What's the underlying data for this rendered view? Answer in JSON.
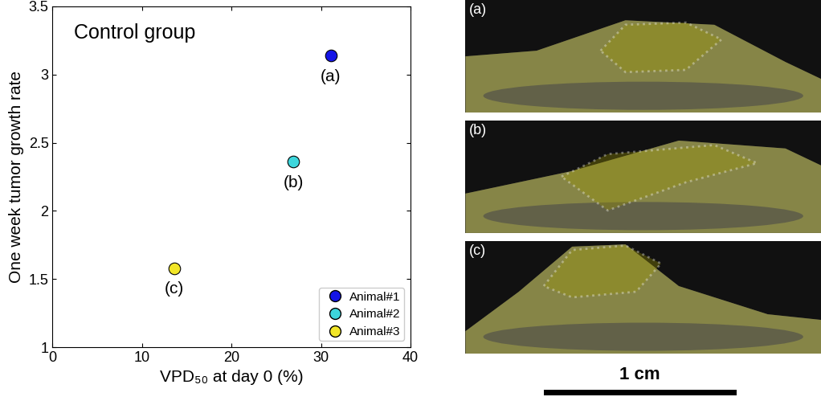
{
  "chart_data": {
    "type": "scatter",
    "annotation": "Control group",
    "x_label": "VPD₅₀ at day 0 (%)",
    "y_label": "One week tumor growth rate",
    "series": [
      {
        "name": "Animal#1",
        "color": "#1414e6",
        "x": [
          31.1
        ],
        "values": [
          3.14
        ],
        "label": "(a)"
      },
      {
        "name": "Animal#2",
        "color": "#3dd6dc",
        "x": [
          26.9
        ],
        "values": [
          2.36
        ],
        "label": "(b)"
      },
      {
        "name": "Animal#3",
        "color": "#f2e628",
        "x": [
          13.6
        ],
        "values": [
          1.58
        ],
        "label": "(c)"
      }
    ],
    "marker": "o",
    "xlim": [
      0,
      40
    ],
    "xticks": [
      0,
      10,
      20,
      30,
      40
    ],
    "ylim": [
      1,
      3.5
    ],
    "yticks": [
      1,
      1.5,
      2,
      2.5,
      3,
      3.5
    ],
    "legend": "lower right",
    "grid": false
  },
  "panels": [
    {
      "label": "(a)"
    },
    {
      "label": "(b)"
    },
    {
      "label": "(c)"
    }
  ],
  "scale_bar": "1 cm"
}
